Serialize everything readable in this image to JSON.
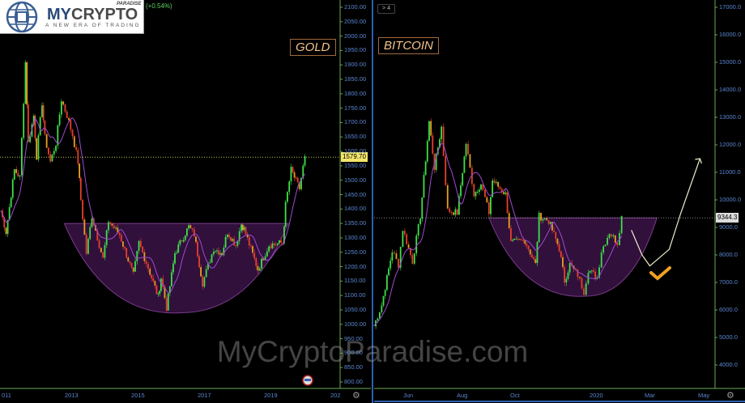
{
  "logo": {
    "brand_blue": "MY",
    "brand_gray": "CRYPTO",
    "small": "PARADISE",
    "tagline": "A NEW ERA OF TRADING"
  },
  "header": {
    "change": "(+0.54%)",
    "interval_pill": "> 4"
  },
  "watermark": "MyCryptoParadise.com",
  "colors": {
    "background": "#000000",
    "up": "#3ee04a",
    "down": "#e8402a",
    "ma": "#a04ad0",
    "cup_fill": "#3a1848",
    "axis_text": "#5b86d0",
    "axis_line": "#6aa84f",
    "label": "#f4c48a",
    "divider": "#2f5fb0"
  },
  "chart_data": [
    {
      "type": "candlestick",
      "title": "GOLD",
      "ylim": [
        800,
        2100
      ],
      "yticks": [
        "2100.00",
        "2050.00",
        "2000.00",
        "1950.00",
        "1900.00",
        "1850.00",
        "1800.00",
        "1750.00",
        "1700.00",
        "1650.00",
        "1600.00",
        "1550.00",
        "1500.00",
        "1450.00",
        "1400.00",
        "1350.00",
        "1300.00",
        "1250.00",
        "1200.00",
        "1150.00",
        "1100.00",
        "1050.00",
        "1000.00",
        "950.00",
        "900.00",
        "850.00",
        "800.00"
      ],
      "xticks": [
        "011",
        "2013",
        "2015",
        "2017",
        "2019",
        "202"
      ],
      "last_price": "1579.70",
      "points": [
        [
          "2010-11",
          1395
        ],
        [
          "2011-01",
          1320
        ],
        [
          "2011-04",
          1536
        ],
        [
          "2011-06",
          1510
        ],
        [
          "2011-08",
          1909
        ],
        [
          "2011-09",
          1628
        ],
        [
          "2011-11",
          1724
        ],
        [
          "2011-12",
          1583
        ],
        [
          "2012-02",
          1769
        ],
        [
          "2012-03",
          1648
        ],
        [
          "2012-05",
          1564
        ],
        [
          "2012-07",
          1628
        ],
        [
          "2012-09",
          1780
        ],
        [
          "2012-11",
          1724
        ],
        [
          "2013-01",
          1656
        ],
        [
          "2013-03",
          1564
        ],
        [
          "2013-04",
          1432
        ],
        [
          "2013-06",
          1247
        ],
        [
          "2013-08",
          1376
        ],
        [
          "2013-12",
          1227
        ],
        [
          "2014-02",
          1359
        ],
        [
          "2014-06",
          1311
        ],
        [
          "2014-11",
          1171
        ],
        [
          "2015-01",
          1283
        ],
        [
          "2015-05",
          1179
        ],
        [
          "2015-08",
          1095
        ],
        [
          "2015-09",
          1162
        ],
        [
          "2015-11",
          1058
        ],
        [
          "2016-02",
          1247
        ],
        [
          "2016-07",
          1339
        ],
        [
          "2016-09",
          1311
        ],
        [
          "2016-12",
          1143
        ],
        [
          "2017-04",
          1263
        ],
        [
          "2017-07",
          1247
        ],
        [
          "2017-09",
          1320
        ],
        [
          "2017-12",
          1275
        ],
        [
          "2018-02",
          1348
        ],
        [
          "2018-03",
          1331
        ],
        [
          "2018-08",
          1190
        ],
        [
          "2018-12",
          1275
        ],
        [
          "2019-05",
          1283
        ],
        [
          "2019-06",
          1415
        ],
        [
          "2019-08",
          1536
        ],
        [
          "2019-11",
          1471
        ],
        [
          "2020-01",
          1583
        ]
      ],
      "cup": {
        "rim": 1350,
        "bottom": 1040,
        "start": "2012-10",
        "end": "2019-07",
        "bottom_at": "2016-04"
      }
    },
    {
      "type": "candlestick",
      "title": "BITCOIN",
      "ylim": [
        4000,
        17000
      ],
      "yticks": [
        "17000.0",
        "16000.0",
        "15000.0",
        "14000.0",
        "13000.0",
        "12000.0",
        "11000.0",
        "10000.0",
        "9000.0",
        "8000.0",
        "7000.0",
        "6000.0",
        "5000.0",
        "4000.0"
      ],
      "xticks": [
        "Jun",
        "Aug",
        "Oct",
        "2020",
        "Mar",
        "May"
      ],
      "last_price": "9344.3",
      "points": [
        [
          "2019-04-23",
          5412
        ],
        [
          "2019-05-02",
          6176
        ],
        [
          "2019-05-14",
          8147
        ],
        [
          "2019-05-21",
          7647
        ],
        [
          "2019-05-26",
          8941
        ],
        [
          "2019-06-06",
          7765
        ],
        [
          "2019-06-15",
          9412
        ],
        [
          "2019-06-25",
          12853
        ],
        [
          "2019-07-01",
          11176
        ],
        [
          "2019-07-09",
          12647
        ],
        [
          "2019-07-16",
          9618
        ],
        [
          "2019-07-27",
          9529
        ],
        [
          "2019-08-06",
          12059
        ],
        [
          "2019-08-15",
          10206
        ],
        [
          "2019-08-23",
          10588
        ],
        [
          "2019-09-01",
          9529
        ],
        [
          "2019-09-05",
          10706
        ],
        [
          "2019-09-20",
          10206
        ],
        [
          "2019-09-26",
          8441
        ],
        [
          "2019-10-12",
          8529
        ],
        [
          "2019-10-24",
          7647
        ],
        [
          "2019-10-28",
          9412
        ],
        [
          "2019-11-08",
          9235
        ],
        [
          "2019-11-20",
          8235
        ],
        [
          "2019-11-26",
          7059
        ],
        [
          "2019-12-02",
          7647
        ],
        [
          "2019-12-11",
          7265
        ],
        [
          "2019-12-18",
          6676
        ],
        [
          "2019-12-23",
          7471
        ],
        [
          "2020-01-02",
          7176
        ],
        [
          "2020-01-07",
          8147
        ],
        [
          "2020-01-16",
          8824
        ],
        [
          "2020-01-25",
          8441
        ],
        [
          "2020-01-30",
          9412
        ]
      ],
      "cup": {
        "rim": 9344,
        "bottom": 6500,
        "start": "2019-09-01",
        "end": "2020-03-10",
        "bottom_at": "2019-12-20"
      },
      "projection": [
        [
          "2020-02-10",
          8900
        ],
        [
          "2020-02-22",
          8000
        ],
        [
          "2020-03-02",
          7600
        ],
        [
          "2020-03-24",
          8200
        ],
        [
          "2020-04-06",
          9500
        ],
        [
          "2020-04-28",
          11500
        ]
      ]
    }
  ]
}
